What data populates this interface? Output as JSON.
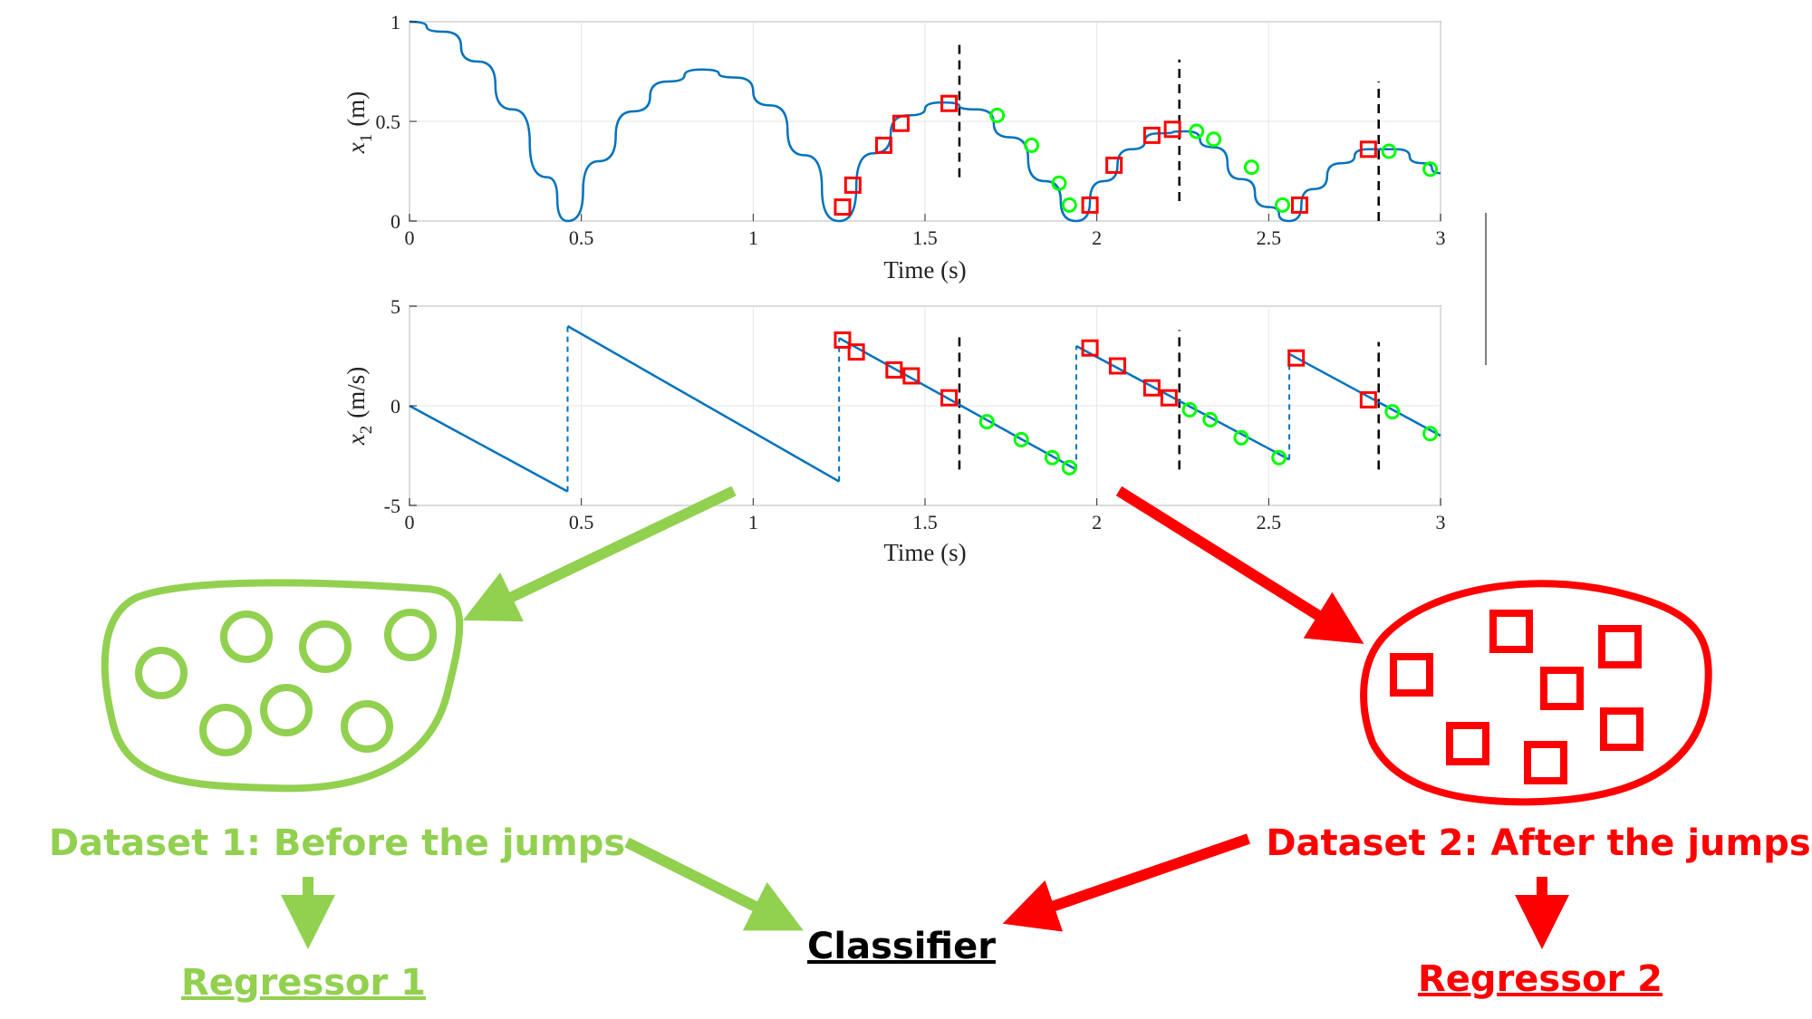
{
  "colors": {
    "curve": "#0072BD",
    "after_marker": "#FF0000",
    "before_marker": "#00FF00",
    "dataset1": "#92D050",
    "dataset2": "#FF0000",
    "classifier": "#000000",
    "jump_line": "#000000"
  },
  "chart_data": [
    {
      "type": "line",
      "xlabel": "Time (s)",
      "ylabel": "x1 (m)",
      "ylabel_parts": {
        "var": "x",
        "sub": "1",
        "unit": "(m)"
      },
      "xlim": [
        0,
        3
      ],
      "ylim": [
        0,
        1
      ],
      "xticks": [
        0,
        0.5,
        1,
        1.5,
        2,
        2.5,
        3
      ],
      "xtick_labels": [
        "0",
        "0.5",
        "1",
        "1.5",
        "2",
        "2.5",
        "3"
      ],
      "yticks": [
        0,
        0.5,
        1
      ],
      "ytick_labels": [
        "0",
        "0.5",
        "1"
      ],
      "grid": true,
      "series": [
        {
          "kind": "curve",
          "x": [
            0,
            0.1,
            0.2,
            0.3,
            0.4,
            0.46,
            0.55,
            0.65,
            0.75,
            0.85,
            0.95,
            1.05,
            1.15,
            1.25,
            1.35,
            1.45,
            1.55,
            1.65,
            1.75,
            1.85,
            1.94,
            2.02,
            2.1,
            2.18,
            2.26,
            2.34,
            2.42,
            2.5,
            2.56,
            2.63,
            2.71,
            2.79,
            2.87,
            2.95,
            3.0
          ],
          "y": [
            1.0,
            0.95,
            0.8,
            0.56,
            0.22,
            0.0,
            0.3,
            0.55,
            0.7,
            0.76,
            0.72,
            0.58,
            0.33,
            0.0,
            0.34,
            0.53,
            0.595,
            0.56,
            0.42,
            0.2,
            0.0,
            0.2,
            0.36,
            0.44,
            0.45,
            0.37,
            0.21,
            0.07,
            0.0,
            0.16,
            0.29,
            0.36,
            0.36,
            0.29,
            0.24
          ]
        },
        {
          "kind": "square",
          "x": [
            1.26,
            1.29,
            1.38,
            1.43,
            1.57,
            1.98,
            2.05,
            2.16,
            2.22,
            2.59,
            2.79
          ],
          "y": [
            0.07,
            0.18,
            0.38,
            0.49,
            0.59,
            0.08,
            0.28,
            0.43,
            0.46,
            0.08,
            0.36
          ]
        },
        {
          "kind": "circle",
          "x": [
            1.71,
            1.81,
            1.89,
            1.92,
            2.29,
            2.34,
            2.45,
            2.54,
            2.85,
            2.97
          ],
          "y": [
            0.53,
            0.38,
            0.19,
            0.08,
            0.45,
            0.41,
            0.27,
            0.08,
            0.35,
            0.26
          ]
        }
      ],
      "jump_lines": [
        {
          "x": 1.6,
          "y0": 0.22,
          "y1": 0.9
        },
        {
          "x": 2.24,
          "y0": 0.1,
          "y1": 0.81
        },
        {
          "x": 2.82,
          "y0": 0.0,
          "y1": 0.7
        }
      ]
    },
    {
      "type": "line",
      "xlabel": "Time (s)",
      "ylabel": "x2 (m/s)",
      "ylabel_parts": {
        "var": "x",
        "sub": "2",
        "unit": "(m/s)"
      },
      "xlim": [
        0,
        3
      ],
      "ylim": [
        -5,
        5
      ],
      "xticks": [
        0,
        0.5,
        1,
        1.5,
        2,
        2.5,
        3
      ],
      "xtick_labels": [
        "0",
        "0.5",
        "1",
        "1.5",
        "2",
        "2.5",
        "3"
      ],
      "yticks": [
        -5,
        0,
        5
      ],
      "ytick_labels": [
        "-5",
        "0",
        "5"
      ],
      "grid": true,
      "segments": [
        {
          "x": [
            0,
            0.46
          ],
          "y": [
            0,
            -4.3
          ]
        },
        {
          "x": [
            0.46,
            1.25
          ],
          "y": [
            4.0,
            -3.8
          ]
        },
        {
          "x": [
            1.25,
            1.94
          ],
          "y": [
            3.4,
            -3.2
          ]
        },
        {
          "x": [
            1.94,
            2.56
          ],
          "y": [
            3.0,
            -2.7
          ]
        },
        {
          "x": [
            2.56,
            3.0
          ],
          "y": [
            2.6,
            -1.5
          ]
        }
      ],
      "jumps": [
        {
          "x": 0.46,
          "from": -4.3,
          "to": 4.0
        },
        {
          "x": 1.25,
          "from": -3.8,
          "to": 3.4
        },
        {
          "x": 1.94,
          "from": -3.2,
          "to": 3.0
        },
        {
          "x": 2.56,
          "from": -2.7,
          "to": 2.6
        }
      ],
      "series": [
        {
          "kind": "square",
          "x": [
            1.26,
            1.3,
            1.41,
            1.46,
            1.57,
            1.98,
            2.06,
            2.16,
            2.21,
            2.58,
            2.79
          ],
          "y": [
            3.3,
            2.7,
            1.8,
            1.5,
            0.4,
            2.9,
            2.0,
            0.9,
            0.4,
            2.4,
            0.3
          ]
        },
        {
          "kind": "circle",
          "x": [
            1.68,
            1.78,
            1.87,
            1.92,
            2.27,
            2.33,
            2.42,
            2.53,
            2.86,
            2.97
          ],
          "y": [
            -0.8,
            -1.7,
            -2.6,
            -3.1,
            -0.2,
            -0.7,
            -1.6,
            -2.6,
            -0.3,
            -1.4
          ]
        }
      ],
      "jump_lines": [
        {
          "x": 1.6,
          "y0": -3.2,
          "y1": 3.7
        },
        {
          "x": 2.24,
          "y0": -3.2,
          "y1": 3.8
        },
        {
          "x": 2.82,
          "y0": -3.2,
          "y1": 3.2
        }
      ]
    }
  ],
  "diagram": {
    "dataset1_label": "Dataset 1: Before the jumps",
    "dataset2_label": "Dataset 2: After the jumps",
    "classifier_label": "Classifier",
    "regressor1_label": "Regressor 1",
    "regressor2_label": "Regressor 2"
  }
}
